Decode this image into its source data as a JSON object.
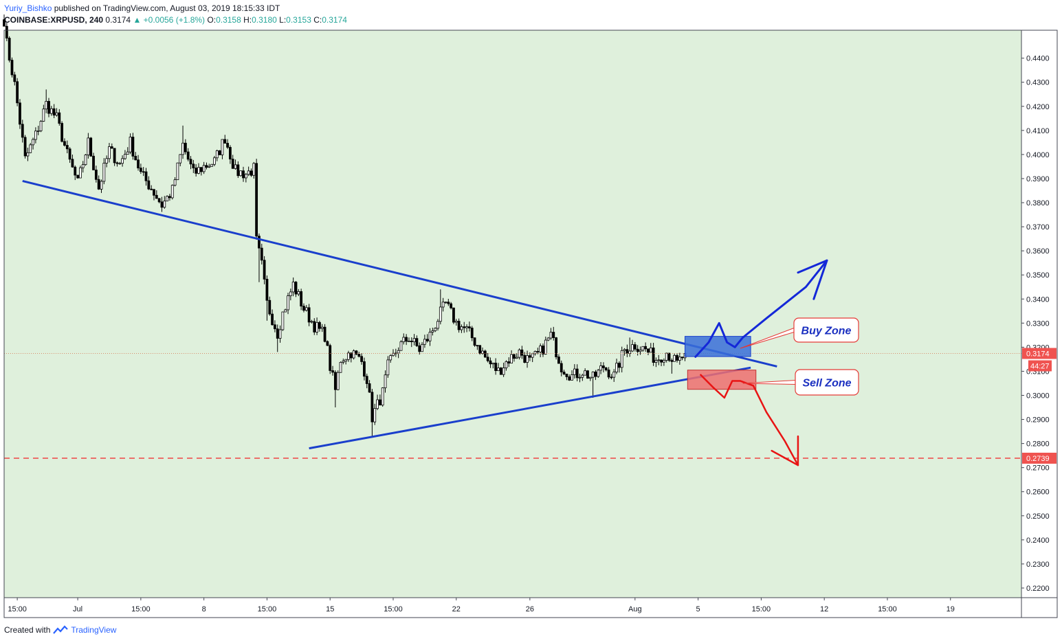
{
  "header": {
    "author": "Yuriy_Bishko",
    "published_text": " published on TradingView.com, August 03, 2019 18:15:33 IDT"
  },
  "symbol": {
    "ticker": "COINBASE:XRPUSD, 240",
    "last": "0.3174",
    "change": "▲ +0.0056 (+1.8%)",
    "o_label": "O:",
    "o": "0.3158",
    "h_label": "H:",
    "h": "0.3180",
    "l_label": "L:",
    "l": "0.3153",
    "c_label": "C:",
    "c": "0.3174"
  },
  "footer": {
    "created_with": "Created with",
    "brand": "TradingView"
  },
  "colors": {
    "chart_bg": "#dff0dc",
    "candle": "#000000",
    "trendline": "#1a3fcc",
    "buy_zone": "#3a6fd8",
    "sell_zone": "#ef6e6e",
    "support_dash": "#ef4444",
    "price_label_bg": "#ef5350"
  },
  "chart_data": {
    "type": "candlestick",
    "title": "COINBASE:XRPUSD, 240",
    "ylim": [
      0.216,
      0.4516
    ],
    "y_ticks": [
      "0.4400",
      "0.4300",
      "0.4200",
      "0.4100",
      "0.4000",
      "0.3900",
      "0.3800",
      "0.3700",
      "0.3600",
      "0.3500",
      "0.3400",
      "0.3300",
      "0.3200",
      "0.3100",
      "0.3000",
      "0.2900",
      "0.2800",
      "0.2700",
      "0.2600",
      "0.2500",
      "0.2400",
      "0.2300",
      "0.2200"
    ],
    "x_ticks": [
      "15:00",
      "Jul",
      "15:00",
      "8",
      "15:00",
      "15",
      "15:00",
      "22",
      "26",
      "Aug",
      "5",
      "15:00",
      "12",
      "15:00",
      "19"
    ],
    "x_domain_bars": [
      0,
      387
    ],
    "x_tick_bars": [
      5,
      28,
      52,
      76,
      100,
      124,
      148,
      172,
      200,
      240,
      264,
      288,
      312,
      336,
      360
    ],
    "current_price": "0.3174",
    "countdown": "44:27",
    "support_level": "0.2739",
    "candles": {
      "count": 260,
      "start": 0.456,
      "close": 0.3174,
      "anchors": [
        [
          0,
          0.456
        ],
        [
          1,
          0.446
        ],
        [
          4,
          0.429
        ],
        [
          8,
          0.398
        ],
        [
          12,
          0.408
        ],
        [
          16,
          0.421
        ],
        [
          20,
          0.415
        ],
        [
          24,
          0.4
        ],
        [
          28,
          0.388
        ],
        [
          32,
          0.405
        ],
        [
          36,
          0.386
        ],
        [
          40,
          0.402
        ],
        [
          44,
          0.396
        ],
        [
          48,
          0.405
        ],
        [
          52,
          0.392
        ],
        [
          56,
          0.386
        ],
        [
          60,
          0.379
        ],
        [
          64,
          0.385
        ],
        [
          68,
          0.404
        ],
        [
          72,
          0.392
        ],
        [
          76,
          0.395
        ],
        [
          80,
          0.397
        ],
        [
          84,
          0.407
        ],
        [
          88,
          0.393
        ],
        [
          92,
          0.392
        ],
        [
          95,
          0.394
        ],
        [
          96,
          0.364
        ],
        [
          98,
          0.354
        ],
        [
          100,
          0.338
        ],
        [
          104,
          0.326
        ],
        [
          106,
          0.334
        ],
        [
          110,
          0.346
        ],
        [
          114,
          0.336
        ],
        [
          118,
          0.329
        ],
        [
          122,
          0.325
        ],
        [
          124,
          0.312
        ],
        [
          126,
          0.302
        ],
        [
          128,
          0.315
        ],
        [
          132,
          0.318
        ],
        [
          136,
          0.314
        ],
        [
          138,
          0.307
        ],
        [
          140,
          0.291
        ],
        [
          142,
          0.296
        ],
        [
          144,
          0.301
        ],
        [
          146,
          0.312
        ],
        [
          150,
          0.32
        ],
        [
          154,
          0.324
        ],
        [
          158,
          0.319
        ],
        [
          162,
          0.325
        ],
        [
          166,
          0.334
        ],
        [
          168,
          0.338
        ],
        [
          172,
          0.33
        ],
        [
          176,
          0.327
        ],
        [
          180,
          0.321
        ],
        [
          184,
          0.314
        ],
        [
          188,
          0.31
        ],
        [
          192,
          0.315
        ],
        [
          196,
          0.318
        ],
        [
          200,
          0.314
        ],
        [
          204,
          0.318
        ],
        [
          208,
          0.325
        ],
        [
          212,
          0.312
        ],
        [
          216,
          0.308
        ],
        [
          220,
          0.31
        ],
        [
          224,
          0.307
        ],
        [
          228,
          0.312
        ],
        [
          232,
          0.308
        ],
        [
          236,
          0.319
        ],
        [
          240,
          0.321
        ],
        [
          244,
          0.319
        ],
        [
          248,
          0.315
        ],
        [
          252,
          0.318
        ],
        [
          256,
          0.313
        ],
        [
          259,
          0.3174
        ]
      ],
      "extremes": [
        [
          0,
          0.456
        ],
        [
          16,
          0.427
        ],
        [
          68,
          0.412
        ],
        [
          95,
          0.39
        ],
        [
          97,
          0.347
        ],
        [
          100,
          0.331
        ],
        [
          104,
          0.318
        ],
        [
          126,
          0.295
        ],
        [
          140,
          0.283
        ],
        [
          166,
          0.344
        ],
        [
          208,
          0.328
        ],
        [
          224,
          0.299
        ],
        [
          238,
          0.324
        ],
        [
          254,
          0.309
        ]
      ]
    },
    "annotations": {
      "descending_trendline": {
        "from": [
          7,
          0.389
        ],
        "to": [
          294,
          0.312
        ]
      },
      "ascending_trendline": {
        "from": [
          116,
          0.278
        ],
        "to": [
          284,
          0.3115
        ]
      },
      "buy_zone": {
        "label": "Buy Zone",
        "x": [
          259,
          284
        ],
        "y": [
          0.3161,
          0.3245
        ]
      },
      "sell_zone": {
        "label": "Sell Zone",
        "x": [
          260,
          286
        ],
        "y": [
          0.3025,
          0.3105
        ]
      },
      "bull_path": [
        [
          263,
          0.316
        ],
        [
          268,
          0.322
        ],
        [
          272,
          0.33
        ],
        [
          275,
          0.322
        ],
        [
          278,
          0.32
        ],
        [
          281,
          0.324
        ],
        [
          290,
          0.332
        ],
        [
          305,
          0.345
        ],
        [
          313,
          0.356
        ]
      ],
      "bull_arrowhead": [
        [
          302,
          0.351
        ],
        [
          313,
          0.356
        ],
        [
          308,
          0.34
        ]
      ],
      "bear_path": [
        [
          265,
          0.3085
        ],
        [
          270,
          0.303
        ],
        [
          274,
          0.299
        ],
        [
          277,
          0.306
        ],
        [
          280,
          0.306
        ],
        [
          285,
          0.304
        ],
        [
          290,
          0.293
        ],
        [
          297,
          0.281
        ],
        [
          302,
          0.271
        ]
      ],
      "bear_arrowhead": [
        [
          292,
          0.277
        ],
        [
          302,
          0.271
        ],
        [
          302,
          0.283
        ]
      ],
      "buy_callout_anchor": [
        280,
        0.3195
      ],
      "sell_callout_anchor": [
        281,
        0.305
      ]
    }
  }
}
